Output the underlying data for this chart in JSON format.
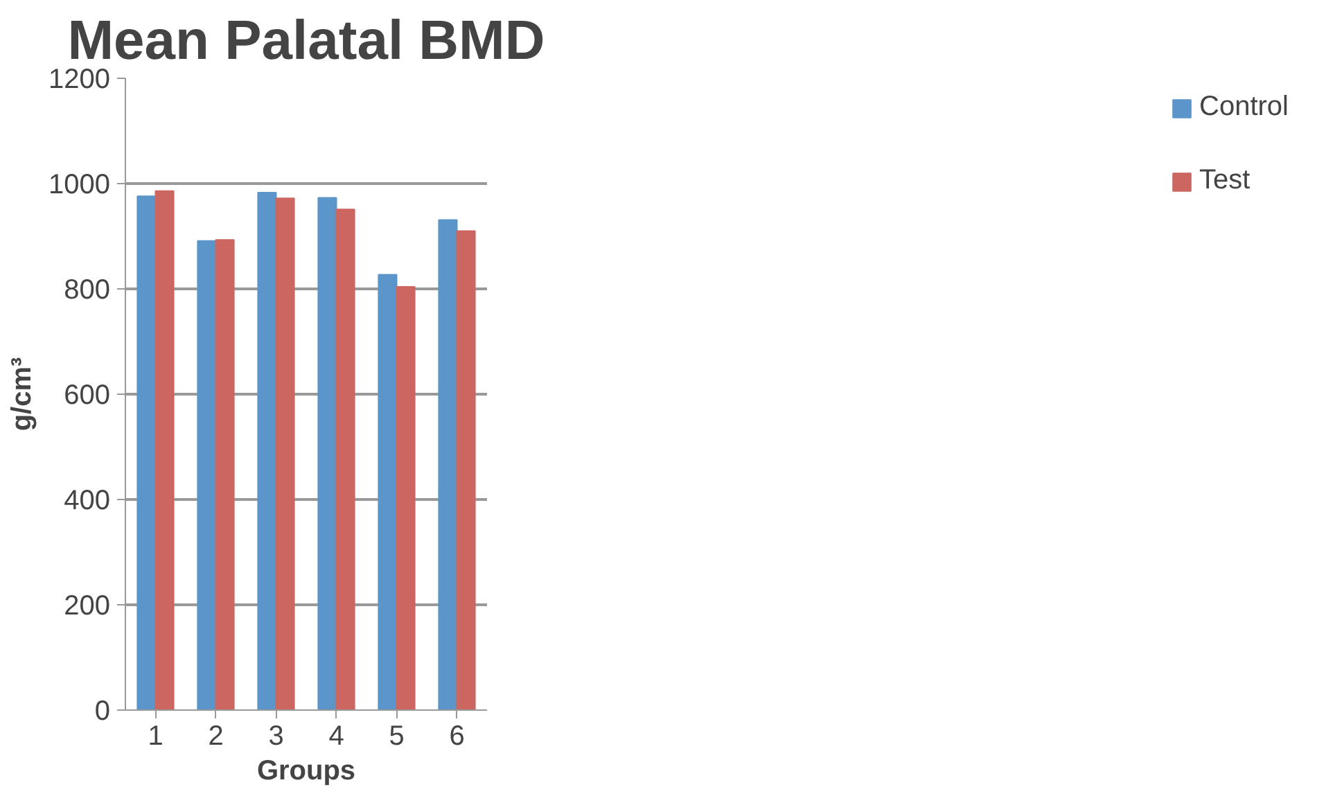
{
  "chart_data": {
    "type": "bar",
    "title": "Mean Palatal BMD",
    "xlabel": "Groups",
    "ylabel": "g/cm³",
    "categories": [
      "1",
      "2",
      "3",
      "4",
      "5",
      "6"
    ],
    "series": [
      {
        "name": "Control",
        "color": "#5b95c9",
        "values": [
          976,
          891,
          983,
          973,
          827,
          931
        ]
      },
      {
        "name": "Test",
        "color": "#cc6660",
        "values": [
          986,
          893,
          972,
          951,
          804,
          910
        ]
      }
    ],
    "ylim": [
      0,
      1200
    ],
    "yticks": [
      0,
      200,
      400,
      600,
      800,
      1000,
      1200
    ],
    "grid": "y",
    "legend": "right"
  }
}
